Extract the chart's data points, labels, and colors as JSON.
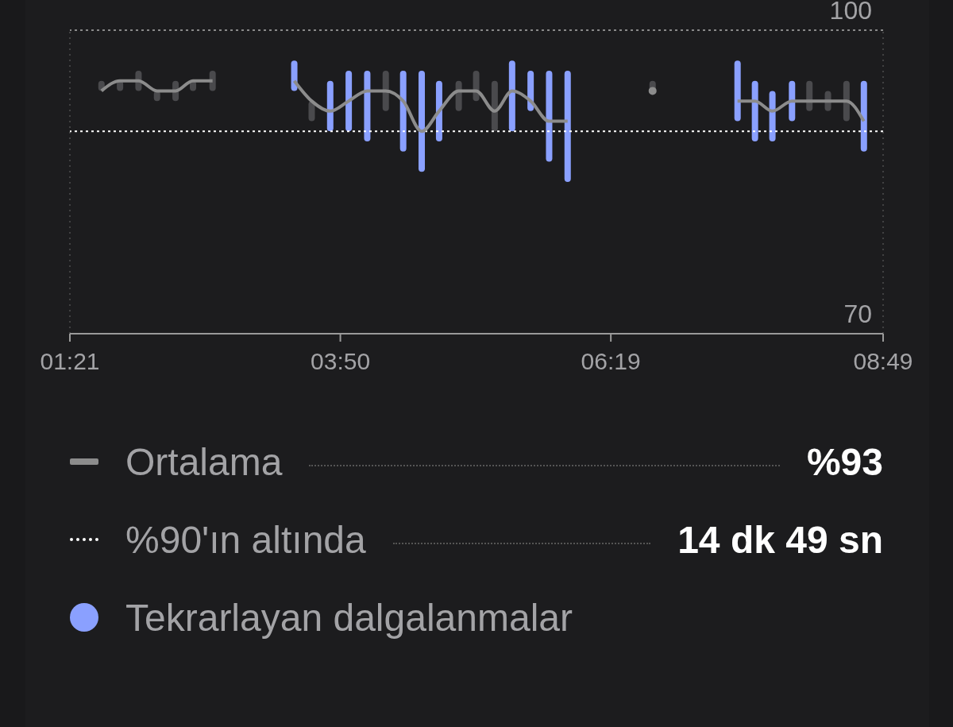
{
  "chart_data": {
    "type": "bar",
    "xlim": [
      1.35,
      8.8167
    ],
    "xticks": [
      {
        "value": 1.35,
        "label": "01:21"
      },
      {
        "value": 3.8333,
        "label": "03:50"
      },
      {
        "value": 6.3167,
        "label": "06:19"
      },
      {
        "value": 8.8167,
        "label": "08:49"
      }
    ],
    "ylim": [
      70,
      100
    ],
    "yticks": [
      70,
      100
    ],
    "series": [
      {
        "color": "#4a4a4d",
        "x": [
          1.64,
          1.81,
          1.98,
          2.15,
          2.32,
          2.48,
          2.66,
          3.57,
          4.25,
          4.92,
          5.08,
          5.25,
          6.7,
          8.14,
          8.31,
          8.48
        ],
        "base": [
          94,
          94,
          94,
          93,
          93,
          94,
          94,
          91,
          92,
          92,
          93,
          90,
          94,
          92,
          92,
          91
        ],
        "values": [
          1,
          1,
          2,
          1,
          2,
          1,
          2,
          2,
          4,
          3,
          3,
          5,
          1,
          3,
          2,
          4
        ]
      },
      {
        "name": "Tekrarlayan dalgalanmalar",
        "color": "#8aa0ff",
        "x": [
          3.41,
          3.74,
          3.91,
          4.08,
          4.41,
          4.58,
          4.74,
          5.41,
          5.58,
          5.75,
          5.92,
          7.48,
          7.64,
          7.8,
          7.98,
          8.64
        ],
        "base": [
          94,
          90,
          90,
          89,
          88,
          86,
          89,
          90,
          92,
          87,
          85,
          91,
          89,
          89,
          91,
          88
        ],
        "values": [
          3,
          5,
          6,
          7,
          8,
          10,
          6,
          7,
          4,
          9,
          11,
          6,
          6,
          5,
          4,
          7
        ]
      },
      {
        "type": "line",
        "name": "Ortalama",
        "color": "#8c8c8c",
        "x": [
          1.64,
          1.81,
          1.98,
          2.15,
          2.32,
          2.48,
          2.66,
          3.0,
          3.41,
          3.57,
          3.74,
          3.91,
          4.08,
          4.25,
          4.41,
          4.58,
          4.74,
          4.92,
          5.08,
          5.25,
          5.41,
          5.58,
          5.75,
          5.92,
          6.3,
          6.7,
          7.1,
          7.48,
          7.64,
          7.8,
          7.98,
          8.14,
          8.31,
          8.48,
          8.64
        ],
        "values": [
          94,
          95,
          95,
          94,
          94,
          95,
          95,
          null,
          95,
          93,
          92,
          93,
          94,
          94,
          93,
          90,
          92,
          94,
          94,
          92,
          94,
          93,
          91,
          91,
          null,
          94,
          null,
          93,
          93,
          92,
          93,
          93,
          93,
          93,
          91
        ]
      }
    ],
    "ref_lines": [
      {
        "axis": "y",
        "value": 90,
        "label": "%90'ın altında",
        "color": "#ffffff",
        "line_style": "dotted"
      }
    ],
    "annotations": [
      "%93",
      "14 dk 49 sn"
    ],
    "legend": "bottom"
  }
}
